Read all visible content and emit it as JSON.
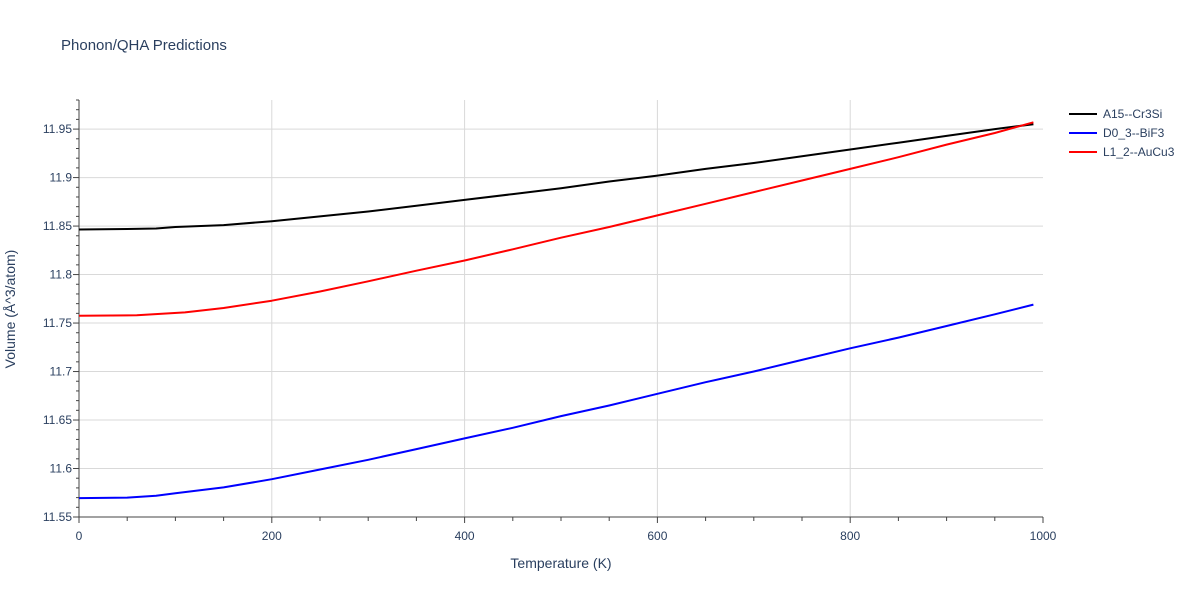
{
  "chart_data": {
    "type": "line",
    "title": "Phonon/QHA Predictions",
    "xlabel": "Temperature (K)",
    "ylabel": "Volume (Å^3/atom)",
    "xlim": [
      0,
      1000
    ],
    "ylim": [
      11.55,
      11.98
    ],
    "x_ticks": [
      0,
      200,
      400,
      600,
      800,
      1000
    ],
    "x_tick_labels": [
      "0",
      "200",
      "400",
      "600",
      "800",
      "1000"
    ],
    "y_ticks": [
      11.55,
      11.6,
      11.65,
      11.7,
      11.75,
      11.8,
      11.85,
      11.9,
      11.95
    ],
    "y_tick_labels": [
      "11.55",
      "11.6",
      "11.65",
      "11.7",
      "11.75",
      "11.8",
      "11.85",
      "11.9",
      "11.95"
    ],
    "grid": true,
    "legend_position": "top-right",
    "series": [
      {
        "name": "A15--Cr3Si",
        "color": "#000000",
        "x": [
          0,
          50,
          80,
          100,
          150,
          200,
          250,
          300,
          350,
          400,
          450,
          500,
          550,
          600,
          650,
          700,
          750,
          800,
          850,
          900,
          950,
          990
        ],
        "y": [
          11.8465,
          11.847,
          11.8475,
          11.849,
          11.851,
          11.855,
          11.86,
          11.865,
          11.871,
          11.877,
          11.883,
          11.889,
          11.896,
          11.902,
          11.909,
          11.915,
          11.922,
          11.929,
          11.936,
          11.943,
          11.95,
          11.955
        ]
      },
      {
        "name": "D0_3--BiF3",
        "color": "#0000ff",
        "x": [
          0,
          50,
          80,
          100,
          150,
          200,
          250,
          300,
          350,
          400,
          450,
          500,
          550,
          600,
          650,
          700,
          750,
          800,
          850,
          900,
          950,
          990
        ],
        "y": [
          11.5695,
          11.57,
          11.572,
          11.5745,
          11.5805,
          11.589,
          11.599,
          11.609,
          11.62,
          11.631,
          11.642,
          11.654,
          11.665,
          11.677,
          11.689,
          11.7,
          11.712,
          11.724,
          11.735,
          11.747,
          11.759,
          11.769
        ]
      },
      {
        "name": "L1_2--AuCu3",
        "color": "#ff0000",
        "x": [
          0,
          60,
          110,
          150,
          200,
          250,
          300,
          350,
          400,
          450,
          500,
          550,
          600,
          650,
          700,
          750,
          800,
          850,
          900,
          950,
          990
        ],
        "y": [
          11.7575,
          11.758,
          11.761,
          11.7655,
          11.773,
          11.7825,
          11.793,
          11.804,
          11.8145,
          11.826,
          11.838,
          11.849,
          11.861,
          11.873,
          11.885,
          11.897,
          11.909,
          11.921,
          11.934,
          11.946,
          11.957
        ]
      }
    ]
  }
}
